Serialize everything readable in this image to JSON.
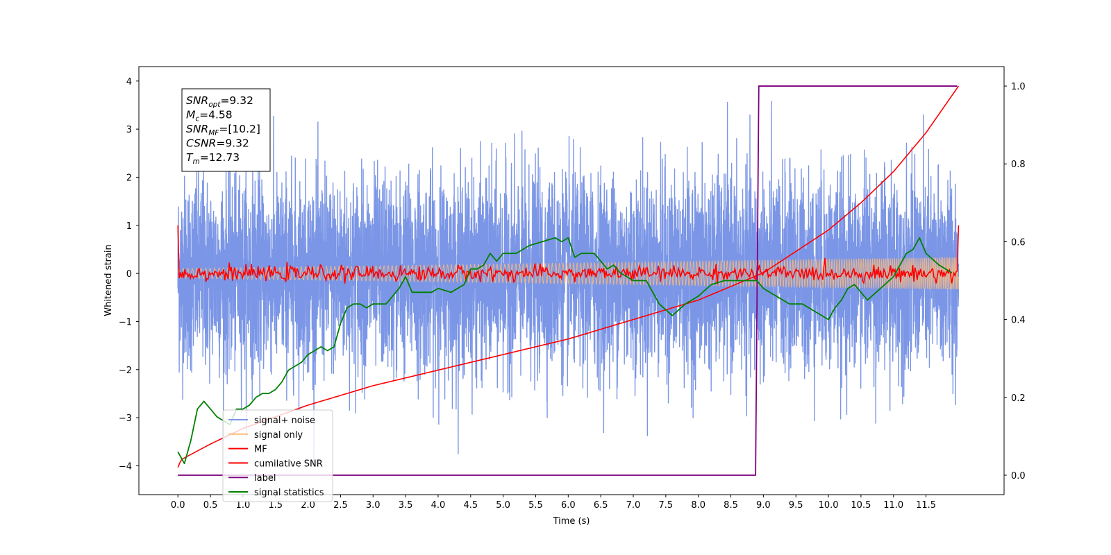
{
  "chart_data": {
    "type": "line",
    "xlabel": "Time (s)",
    "ylabel": "Whitened strain",
    "xlim": [
      -0.6,
      12.7
    ],
    "ylim": [
      -4.6,
      4.3
    ],
    "y2lim": [
      -0.05,
      1.05
    ],
    "x_ticks": [
      "0.0",
      "0.5",
      "1.0",
      "1.5",
      "2.0",
      "2.5",
      "3.0",
      "3.5",
      "4.0",
      "4.5",
      "5.0",
      "5.5",
      "6.0",
      "6.5",
      "7.0",
      "7.5",
      "8.0",
      "8.5",
      "9.0",
      "9.5",
      "10.0",
      "10.5",
      "11.0",
      "11.5"
    ],
    "y_ticks": [
      "4",
      "3",
      "2",
      "1",
      "0",
      "−1",
      "−2",
      "−3",
      "−4"
    ],
    "y2_ticks": [
      "1.0",
      "0.8",
      "0.6",
      "0.4",
      "0.2",
      "0.0"
    ],
    "legend_position": "lower-left",
    "annotation": {
      "lines": [
        {
          "sym": "SNR",
          "sub": "opt",
          "val": "=9.32"
        },
        {
          "sym": "M",
          "sub": "c",
          "val": "=4.58"
        },
        {
          "sym": "SNR",
          "sub": "MF",
          "val": "=[10.2]"
        },
        {
          "sym": "CSNR",
          "sub": "",
          "val": "=9.32"
        },
        {
          "sym": "T",
          "sub": "m",
          "val": "=12.73"
        }
      ]
    },
    "series": [
      {
        "name": "signal+ noise",
        "color": "#7b96e6",
        "axis": "left",
        "style": "noise band",
        "x_range": [
          0.0,
          12.0
        ],
        "sigma": 1.0,
        "y_min": -4.15,
        "y_max": 3.88
      },
      {
        "name": "signal only",
        "color": "#ffbb78",
        "axis": "left",
        "style": "chirp",
        "x_range": [
          0.0,
          12.0
        ],
        "amplitude_start": 0.1,
        "amplitude_end": 0.33
      },
      {
        "name": "MF",
        "color": "#ff0000",
        "axis": "left",
        "x": [
          0.0,
          0.02,
          0.5,
          1.0,
          2.0,
          3.0,
          4.0,
          5.0,
          6.0,
          7.0,
          8.0,
          9.0,
          10.0,
          11.0,
          11.98,
          12.0
        ],
        "y": [
          1.0,
          0.0,
          0.0,
          0.0,
          0.0,
          0.0,
          0.0,
          0.0,
          0.0,
          0.0,
          0.0,
          0.0,
          0.0,
          0.0,
          0.0,
          1.0
        ]
      },
      {
        "name": "cumilative SNR",
        "color": "#ff0000",
        "axis": "right",
        "x": [
          0.0,
          0.05,
          0.5,
          1.0,
          2.0,
          3.0,
          4.0,
          5.0,
          6.0,
          7.0,
          8.0,
          9.0,
          10.0,
          10.5,
          11.0,
          11.5,
          12.0
        ],
        "y": [
          0.02,
          0.04,
          0.08,
          0.12,
          0.18,
          0.23,
          0.27,
          0.31,
          0.35,
          0.4,
          0.45,
          0.52,
          0.63,
          0.7,
          0.78,
          0.88,
          1.0
        ]
      },
      {
        "name": "label",
        "color": "#800080",
        "axis": "right",
        "x": [
          0.0,
          8.88,
          8.93,
          11.98
        ],
        "y": [
          0.0,
          0.0,
          1.0,
          1.0
        ]
      },
      {
        "name": "signal statistics",
        "color": "#008000",
        "axis": "right",
        "x": [
          0.0,
          0.1,
          0.2,
          0.3,
          0.4,
          0.5,
          0.6,
          0.7,
          0.8,
          0.9,
          1.0,
          1.1,
          1.2,
          1.3,
          1.4,
          1.5,
          1.6,
          1.7,
          1.8,
          1.9,
          2.0,
          2.1,
          2.2,
          2.3,
          2.4,
          2.5,
          2.6,
          2.7,
          2.8,
          2.9,
          3.0,
          3.2,
          3.4,
          3.5,
          3.6,
          3.7,
          3.8,
          3.9,
          4.0,
          4.2,
          4.4,
          4.5,
          4.6,
          4.7,
          4.8,
          4.9,
          5.0,
          5.2,
          5.4,
          5.6,
          5.8,
          5.9,
          6.0,
          6.1,
          6.2,
          6.4,
          6.5,
          6.6,
          6.7,
          6.8,
          7.0,
          7.2,
          7.4,
          7.6,
          7.8,
          7.9,
          8.0,
          8.2,
          8.4,
          8.6,
          8.8,
          8.9,
          9.0,
          9.2,
          9.4,
          9.6,
          9.8,
          10.0,
          10.1,
          10.2,
          10.3,
          10.4,
          10.5,
          10.6,
          10.8,
          11.0,
          11.2,
          11.3,
          11.4,
          11.5,
          11.7,
          11.9
        ],
        "y": [
          0.06,
          0.03,
          0.09,
          0.17,
          0.19,
          0.17,
          0.15,
          0.14,
          0.13,
          0.17,
          0.17,
          0.18,
          0.2,
          0.21,
          0.21,
          0.22,
          0.24,
          0.27,
          0.28,
          0.29,
          0.31,
          0.32,
          0.33,
          0.32,
          0.33,
          0.39,
          0.43,
          0.44,
          0.44,
          0.43,
          0.44,
          0.44,
          0.48,
          0.51,
          0.47,
          0.47,
          0.47,
          0.47,
          0.48,
          0.47,
          0.49,
          0.53,
          0.53,
          0.54,
          0.57,
          0.55,
          0.57,
          0.57,
          0.59,
          0.6,
          0.61,
          0.6,
          0.61,
          0.56,
          0.57,
          0.57,
          0.55,
          0.53,
          0.54,
          0.52,
          0.5,
          0.5,
          0.44,
          0.41,
          0.44,
          0.45,
          0.46,
          0.49,
          0.5,
          0.5,
          0.5,
          0.5,
          0.48,
          0.46,
          0.44,
          0.44,
          0.42,
          0.4,
          0.43,
          0.45,
          0.48,
          0.49,
          0.47,
          0.45,
          0.48,
          0.51,
          0.57,
          0.58,
          0.61,
          0.57,
          0.54,
          0.52
        ]
      }
    ]
  }
}
